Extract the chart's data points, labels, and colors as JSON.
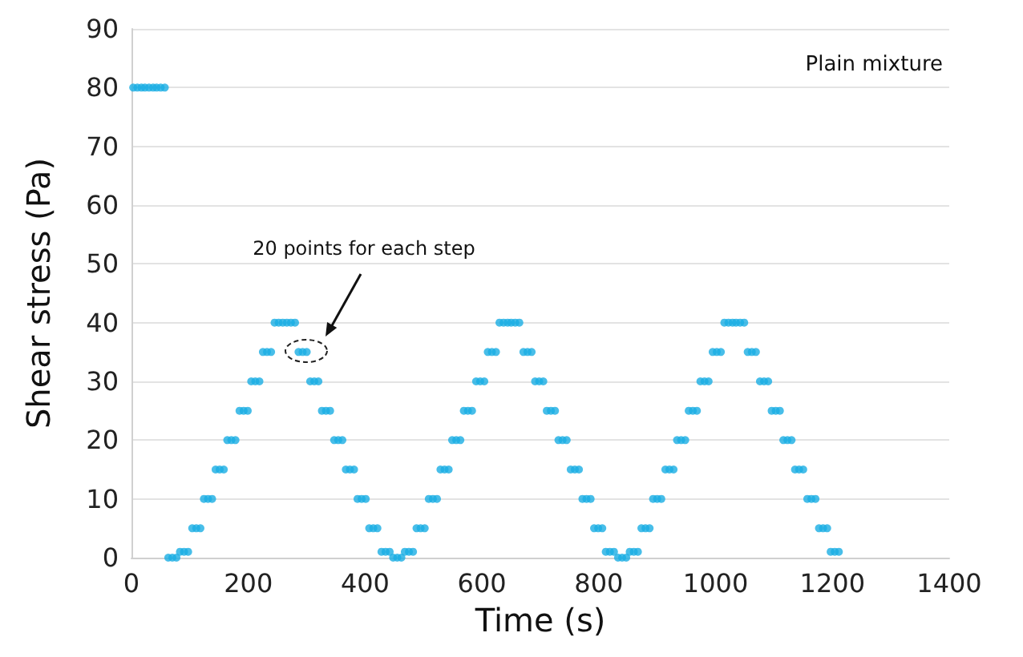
{
  "chart_data": {
    "type": "scatter",
    "xlabel": "Time (s)",
    "ylabel": "Shear stress (Pa)",
    "xlim": [
      0,
      1400
    ],
    "xticks": [
      0,
      200,
      400,
      600,
      800,
      1000,
      1200,
      1400
    ],
    "ylim": [
      0,
      90
    ],
    "yticks": [
      0,
      10,
      20,
      30,
      40,
      50,
      60,
      70,
      80,
      90
    ],
    "grid": "y",
    "marker": "circle",
    "annotations": [
      "Plain mixture",
      "20 points for each step"
    ],
    "series": [
      {
        "color": "#1aaee3",
        "x": [
          3,
          10,
          17,
          23,
          30,
          37,
          43,
          50,
          57,
          63,
          70,
          77,
          83,
          90,
          97,
          104,
          111,
          118,
          124,
          131,
          138,
          144,
          151,
          158,
          164,
          171,
          178,
          185,
          192,
          199,
          205,
          212,
          219,
          225,
          232,
          239,
          245,
          252,
          259,
          266,
          273,
          280,
          286,
          293,
          300,
          306,
          313,
          320,
          326,
          333,
          340,
          347,
          354,
          361,
          367,
          374,
          381,
          387,
          394,
          401,
          407,
          414,
          421,
          428,
          435,
          442,
          448,
          455,
          462,
          468,
          475,
          482,
          488,
          495,
          502,
          509,
          516,
          523,
          529,
          536,
          543,
          549,
          556,
          563,
          569,
          576,
          583,
          590,
          597,
          604,
          610,
          617,
          624,
          630,
          637,
          644,
          650,
          657,
          664,
          671,
          678,
          685,
          691,
          698,
          705,
          711,
          718,
          725,
          731,
          738,
          745,
          752,
          759,
          766,
          772,
          779,
          786,
          792,
          799,
          806,
          812,
          819,
          826,
          833,
          840,
          847,
          853,
          860,
          867,
          873,
          880,
          887,
          893,
          900,
          907,
          914,
          921,
          928,
          934,
          941,
          948,
          954,
          961,
          968,
          974,
          981,
          988,
          995,
          1002,
          1009,
          1015,
          1022,
          1029,
          1035,
          1042,
          1049,
          1055,
          1062,
          1069,
          1076,
          1083,
          1090,
          1096,
          1103,
          1110,
          1116,
          1123,
          1130,
          1136,
          1143,
          1150,
          1157,
          1164,
          1171,
          1177,
          1184,
          1191,
          1197,
          1204,
          1211
        ],
        "values": [
          80,
          80,
          80,
          80,
          80,
          80,
          80,
          80,
          80,
          0,
          0,
          0,
          1,
          1,
          1,
          5,
          5,
          5,
          10,
          10,
          10,
          15,
          15,
          15,
          20,
          20,
          20,
          25,
          25,
          25,
          30,
          30,
          30,
          35,
          35,
          35,
          40,
          40,
          40,
          40,
          40,
          40,
          35,
          35,
          35,
          30,
          30,
          30,
          25,
          25,
          25,
          20,
          20,
          20,
          15,
          15,
          15,
          10,
          10,
          10,
          5,
          5,
          5,
          1,
          1,
          1,
          0,
          0,
          0,
          1,
          1,
          1,
          5,
          5,
          5,
          10,
          10,
          10,
          15,
          15,
          15,
          20,
          20,
          20,
          25,
          25,
          25,
          30,
          30,
          30,
          35,
          35,
          35,
          40,
          40,
          40,
          40,
          40,
          40,
          35,
          35,
          35,
          30,
          30,
          30,
          25,
          25,
          25,
          20,
          20,
          20,
          15,
          15,
          15,
          10,
          10,
          10,
          5,
          5,
          5,
          1,
          1,
          1,
          0,
          0,
          0,
          1,
          1,
          1,
          5,
          5,
          5,
          10,
          10,
          10,
          15,
          15,
          15,
          20,
          20,
          20,
          25,
          25,
          25,
          30,
          30,
          30,
          35,
          35,
          35,
          40,
          40,
          40,
          40,
          40,
          40,
          35,
          35,
          35,
          30,
          30,
          30,
          25,
          25,
          25,
          20,
          20,
          20,
          15,
          15,
          15,
          10,
          10,
          10,
          5,
          5,
          5,
          1,
          1,
          1
        ]
      }
    ]
  }
}
